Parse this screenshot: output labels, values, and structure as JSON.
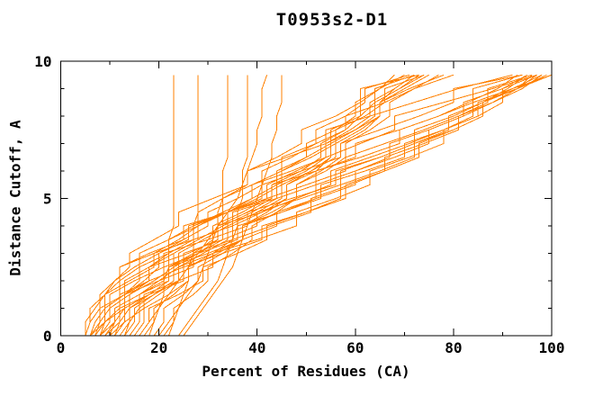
{
  "chart_data": {
    "type": "line",
    "title": "T0953s2-D1",
    "xlabel": "Percent of Residues (CA)",
    "ylabel": "Distance Cutoff, A",
    "xlim": [
      0,
      100
    ],
    "ylim": [
      0,
      10
    ],
    "x_major_ticks": [
      0,
      20,
      40,
      60,
      80,
      100
    ],
    "x_major_tick_labels": [
      "0",
      "20",
      "40",
      "60",
      "80",
      "100"
    ],
    "x_minor_ticks": [
      10,
      30,
      50,
      70,
      90
    ],
    "y_major_ticks": [
      0,
      5,
      10
    ],
    "y_major_tick_labels": [
      "0",
      "5",
      "10"
    ],
    "y_minor_ticks": [
      1,
      2,
      3,
      4,
      6,
      7,
      8,
      9
    ],
    "grid": false,
    "legend": "none",
    "line_color": "#ff8000",
    "axis_color": "#000000",
    "background_color": "#ffffff",
    "y_levels": [
      0,
      0.5,
      1,
      1.5,
      2,
      2.5,
      3,
      3.5,
      4,
      4.5,
      5,
      5.5,
      6,
      6.5,
      7,
      7.5,
      8,
      8.5,
      9,
      9.5
    ],
    "series": [
      {
        "x": [
          5,
          5,
          7,
          9,
          12,
          16,
          16,
          22,
          27,
          33,
          39,
          39,
          47,
          54,
          61,
          68,
          68,
          78,
          88,
          97
        ]
      },
      {
        "x": [
          6,
          8,
          8,
          13,
          18,
          18,
          26,
          32,
          32,
          41,
          48,
          55,
          55,
          63,
          71,
          78,
          84,
          84,
          92,
          100
        ]
      },
      {
        "x": [
          5,
          6,
          8,
          8,
          11,
          15,
          20,
          26,
          26,
          34,
          42,
          50,
          58,
          58,
          66,
          74,
          81,
          87,
          87,
          96
        ]
      },
      {
        "x": [
          7,
          9,
          12,
          12,
          18,
          25,
          25,
          33,
          40,
          40,
          49,
          57,
          57,
          65,
          72,
          79,
          79,
          86,
          92,
          98
        ]
      },
      {
        "x": [
          8,
          11,
          11,
          16,
          22,
          22,
          30,
          37,
          44,
          44,
          52,
          60,
          60,
          68,
          75,
          75,
          82,
          88,
          93,
          96
        ]
      },
      {
        "x": [
          6,
          9,
          13,
          13,
          20,
          27,
          27,
          35,
          43,
          51,
          51,
          59,
          66,
          66,
          74,
          81,
          81,
          88,
          94,
          98
        ]
      },
      {
        "x": [
          9,
          12,
          12,
          18,
          25,
          25,
          33,
          41,
          41,
          50,
          58,
          58,
          66,
          73,
          73,
          80,
          86,
          86,
          93,
          99
        ]
      },
      {
        "x": [
          10,
          13,
          17,
          17,
          24,
          31,
          31,
          40,
          48,
          48,
          56,
          63,
          63,
          71,
          78,
          78,
          85,
          90,
          90,
          97
        ]
      },
      {
        "x": [
          7,
          9,
          9,
          13,
          13,
          18,
          22,
          22,
          28,
          33,
          33,
          39,
          45,
          45,
          52,
          58,
          58,
          66,
          72,
          80
        ]
      },
      {
        "x": [
          12,
          14,
          14,
          18,
          22,
          22,
          27,
          31,
          31,
          37,
          42,
          42,
          48,
          54,
          54,
          60,
          65,
          65,
          71,
          78
        ]
      },
      {
        "x": [
          10,
          11,
          13,
          13,
          17,
          20,
          20,
          25,
          30,
          30,
          36,
          41,
          41,
          47,
          52,
          52,
          58,
          62,
          62,
          71
        ]
      },
      {
        "x": [
          14,
          16,
          16,
          20,
          24,
          24,
          29,
          34,
          34,
          40,
          45,
          45,
          51,
          56,
          56,
          61,
          65,
          65,
          70,
          75
        ]
      },
      {
        "x": [
          8,
          10,
          10,
          14,
          18,
          18,
          23,
          28,
          28,
          34,
          39,
          39,
          45,
          50,
          50,
          56,
          60,
          60,
          65,
          70
        ]
      },
      {
        "x": [
          15,
          17,
          17,
          22,
          26,
          26,
          32,
          37,
          37,
          43,
          48,
          48,
          54,
          58,
          58,
          63,
          67,
          67,
          72,
          77
        ]
      },
      {
        "x": [
          11,
          13,
          13,
          18,
          22,
          22,
          28,
          33,
          33,
          39,
          44,
          44,
          50,
          54,
          54,
          59,
          63,
          63,
          68,
          72
        ]
      },
      {
        "x": [
          13,
          15,
          15,
          19,
          23,
          23,
          28,
          32,
          32,
          38,
          43,
          43,
          49,
          53,
          53,
          58,
          61,
          61,
          65,
          68
        ]
      },
      {
        "x": [
          18,
          19,
          20,
          21,
          21,
          22,
          22,
          22,
          23,
          23,
          23,
          23,
          23,
          23,
          23,
          23,
          23,
          23,
          23,
          23
        ]
      },
      {
        "x": [
          22,
          23,
          24,
          25,
          26,
          26,
          27,
          27,
          27,
          28,
          28,
          28,
          28,
          28,
          28,
          28,
          28,
          28,
          28,
          28
        ]
      },
      {
        "x": [
          20,
          22,
          24,
          26,
          28,
          29,
          30,
          31,
          32,
          32,
          33,
          33,
          33,
          34,
          34,
          34,
          34,
          34,
          34,
          34
        ]
      },
      {
        "x": [
          24,
          26,
          28,
          30,
          32,
          33,
          34,
          35,
          36,
          36,
          37,
          37,
          37,
          38,
          38,
          38,
          38,
          38,
          38,
          38
        ]
      },
      {
        "x": [
          16,
          18,
          20,
          22,
          24,
          26,
          28,
          30,
          32,
          34,
          36,
          37,
          38,
          39,
          40,
          40,
          41,
          41,
          41,
          42
        ]
      },
      {
        "x": [
          25,
          27,
          29,
          31,
          33,
          35,
          36,
          37,
          38,
          39,
          40,
          41,
          42,
          43,
          43,
          44,
          44,
          45,
          45,
          45
        ]
      },
      {
        "x": [
          5,
          6,
          6,
          9,
          12,
          12,
          18,
          25,
          25,
          34,
          43,
          43,
          52,
          60,
          60,
          69,
          77,
          84,
          84,
          94
        ]
      },
      {
        "x": [
          6,
          7,
          9,
          9,
          14,
          19,
          19,
          27,
          35,
          35,
          44,
          52,
          52,
          61,
          69,
          69,
          77,
          83,
          89,
          93
        ]
      },
      {
        "x": [
          9,
          11,
          11,
          16,
          21,
          21,
          28,
          36,
          36,
          45,
          53,
          53,
          62,
          70,
          70,
          78,
          85,
          85,
          93,
          100
        ]
      },
      {
        "x": [
          7,
          8,
          10,
          10,
          15,
          21,
          21,
          30,
          38,
          38,
          47,
          56,
          56,
          65,
          72,
          72,
          80,
          86,
          91,
          95
        ]
      },
      {
        "x": [
          9,
          12,
          12,
          12,
          12,
          12,
          19,
          24,
          28,
          28,
          33,
          38,
          38,
          44,
          49,
          49,
          56,
          61,
          61,
          73
        ]
      },
      {
        "x": [
          11,
          12,
          14,
          14,
          19,
          23,
          23,
          28,
          33,
          33,
          39,
          44,
          44,
          50,
          55,
          55,
          61,
          64,
          64,
          72
        ]
      },
      {
        "x": [
          13,
          14,
          16,
          16,
          20,
          24,
          24,
          29,
          34,
          34,
          40,
          45,
          45,
          51,
          56,
          56,
          62,
          66,
          66,
          74
        ]
      },
      {
        "x": [
          17,
          19,
          19,
          23,
          26,
          26,
          31,
          35,
          35,
          41,
          46,
          46,
          52,
          55,
          55,
          60,
          64,
          64,
          69,
          74
        ]
      },
      {
        "x": [
          19,
          21,
          21,
          25,
          28,
          28,
          33,
          37,
          37,
          42,
          46,
          46,
          51,
          55,
          55,
          60,
          64,
          64,
          69,
          73
        ]
      },
      {
        "x": [
          21,
          23,
          23,
          27,
          30,
          30,
          35,
          39,
          39,
          44,
          48,
          48,
          53,
          57,
          57,
          62,
          65,
          65,
          68,
          72
        ]
      },
      {
        "x": [
          5,
          6,
          6,
          9,
          11,
          14,
          14,
          19,
          24,
          24,
          31,
          38,
          38,
          46,
          54,
          54,
          63,
          72,
          81,
          92
        ]
      },
      {
        "x": [
          8,
          9,
          9,
          13,
          16,
          16,
          22,
          27,
          27,
          34,
          41,
          41,
          49,
          57,
          57,
          65,
          73,
          80,
          80,
          94
        ]
      },
      {
        "x": [
          12,
          14,
          14,
          19,
          24,
          24,
          31,
          37,
          37,
          45,
          52,
          52,
          60,
          67,
          67,
          75,
          82,
          82,
          90,
          95
        ]
      },
      {
        "x": [
          16,
          18,
          18,
          24,
          29,
          29,
          36,
          42,
          42,
          50,
          57,
          57,
          65,
          72,
          72,
          80,
          86,
          86,
          93,
          97
        ]
      }
    ]
  }
}
